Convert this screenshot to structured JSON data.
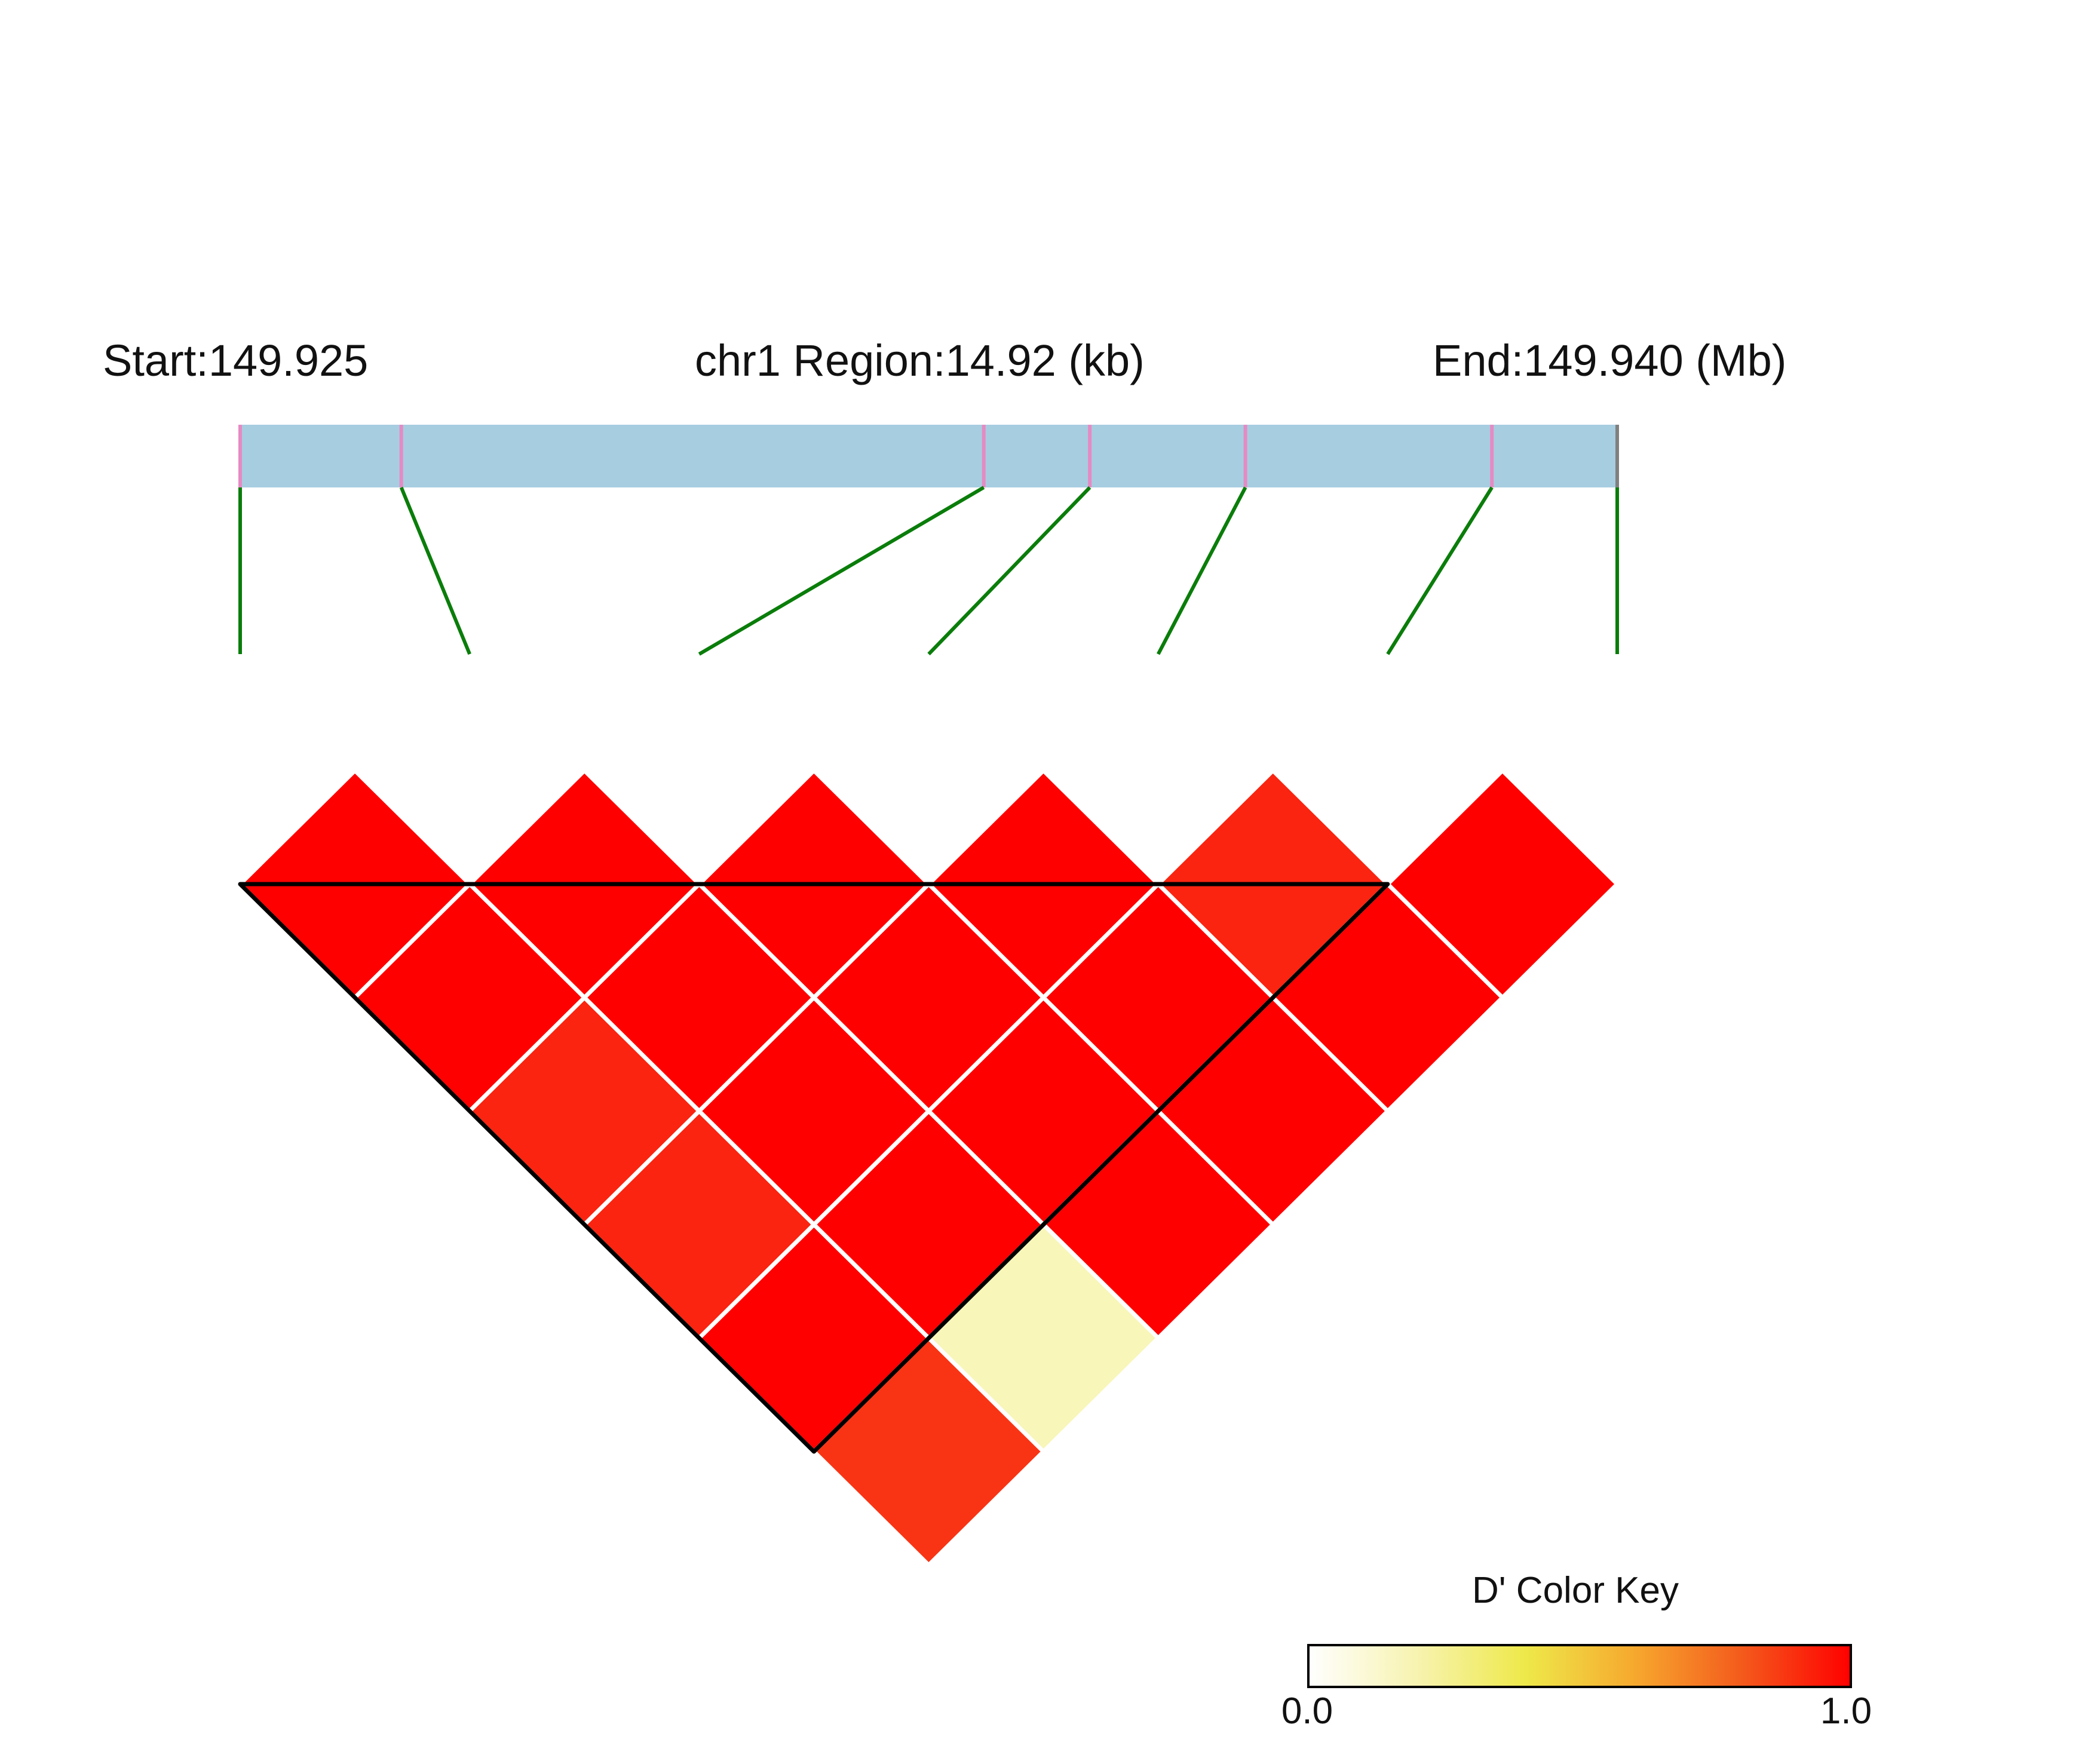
{
  "header": {
    "start_label": "Start:149.925",
    "region_label": "chr1 Region:14.92 (kb)",
    "end_label": "End:149.940 (Mb)"
  },
  "colors": {
    "region_bar": "#a7cde1",
    "snp_tick": "#e68ac3",
    "end_tick": "#808080",
    "connector": "#0a7d0a",
    "cell_border": "#ffffff",
    "block_outline": "#000000"
  },
  "color_key": {
    "title": "D' Color Key",
    "min_label": "0.0",
    "max_label": "1.0",
    "stops": [
      "#ffffff",
      "#f7f3b0",
      "#eee94a",
      "#f6a92e",
      "#f45a1c",
      "#ff0000"
    ]
  },
  "chart_data": {
    "type": "heatmap",
    "measure": "D'",
    "chromosome": "chr1",
    "region_start_mb": 149.925,
    "region_end_mb": 149.94,
    "region_size_kb": 14.92,
    "snp_count": 7,
    "snp_rel_positions": [
      0.0,
      0.117,
      0.54,
      0.617,
      0.73,
      0.909,
      1.0
    ],
    "pairs": [
      {
        "i": 1,
        "j": 2,
        "value": 1.0,
        "color": "#ff0000"
      },
      {
        "i": 2,
        "j": 3,
        "value": 1.0,
        "color": "#ff0000"
      },
      {
        "i": 3,
        "j": 4,
        "value": 1.0,
        "color": "#ff0000"
      },
      {
        "i": 4,
        "j": 5,
        "value": 1.0,
        "color": "#ff0000"
      },
      {
        "i": 5,
        "j": 6,
        "value": 0.96,
        "color": "#fa2410"
      },
      {
        "i": 6,
        "j": 7,
        "value": 1.0,
        "color": "#ff0000"
      },
      {
        "i": 1,
        "j": 3,
        "value": 1.0,
        "color": "#ff0000"
      },
      {
        "i": 2,
        "j": 4,
        "value": 1.0,
        "color": "#ff0000"
      },
      {
        "i": 3,
        "j": 5,
        "value": 1.0,
        "color": "#ff0000"
      },
      {
        "i": 4,
        "j": 6,
        "value": 1.0,
        "color": "#ff0000"
      },
      {
        "i": 5,
        "j": 7,
        "value": 1.0,
        "color": "#ff0000"
      },
      {
        "i": 1,
        "j": 4,
        "value": 0.96,
        "color": "#fa2410"
      },
      {
        "i": 2,
        "j": 5,
        "value": 1.0,
        "color": "#ff0000"
      },
      {
        "i": 3,
        "j": 6,
        "value": 1.0,
        "color": "#ff0000"
      },
      {
        "i": 4,
        "j": 7,
        "value": 1.0,
        "color": "#ff0000"
      },
      {
        "i": 1,
        "j": 5,
        "value": 0.96,
        "color": "#fa2410"
      },
      {
        "i": 2,
        "j": 6,
        "value": 1.0,
        "color": "#ff0000"
      },
      {
        "i": 3,
        "j": 7,
        "value": 1.0,
        "color": "#ff0000"
      },
      {
        "i": 1,
        "j": 6,
        "value": 1.0,
        "color": "#ff0000"
      },
      {
        "i": 2,
        "j": 7,
        "value": 0.15,
        "color": "#f8f6b9"
      },
      {
        "i": 1,
        "j": 7,
        "value": 0.93,
        "color": "#f93414"
      }
    ],
    "ld_blocks": [
      {
        "first_snp": 1,
        "last_snp": 6
      }
    ]
  }
}
